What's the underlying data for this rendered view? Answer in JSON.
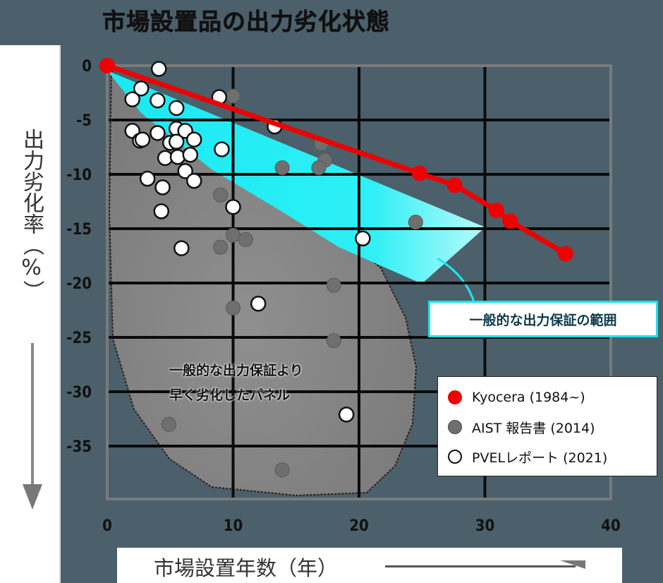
{
  "title": "市場設置品の出力劣化状態",
  "y_axis_label": "出力劣化率（%）",
  "x_axis_label": "市場設置年数（年）",
  "callout_label": "一般的な出力保証の範囲",
  "region_label_line1": "一般的な出力保証より",
  "region_label_line2": "早く劣化したパネル",
  "legend": [
    {
      "label": "Kyocera (1984~)",
      "color": "#ee0000",
      "style": "filled"
    },
    {
      "label": "AIST 報告書 (2014)",
      "color": "#6f6f6f",
      "style": "filled"
    },
    {
      "label": "PVELレポート (2021)",
      "color": "#ffffff",
      "style": "hollow"
    }
  ],
  "colors": {
    "background": "#4b606a",
    "kyocera": "#ee0000",
    "aist": "#6f6f6f",
    "pvel": "#ffffff",
    "warranty_band": "#19e8f2",
    "early_degradation_region": "#8a8a8a",
    "grid": "#0a0a0a",
    "frame": "#7a7a7a"
  },
  "chart_data": {
    "type": "scatter",
    "title": "市場設置品の出力劣化状態",
    "xlabel": "市場設置年数（年）",
    "ylabel": "出力劣化率（%）",
    "xlim": [
      0,
      40
    ],
    "ylim": [
      -40,
      0
    ],
    "x_ticks": [
      0,
      10,
      20,
      30,
      40
    ],
    "y_ticks": [
      0,
      -5,
      -10,
      -15,
      -20,
      -25,
      -30,
      -35
    ],
    "grid": true,
    "legend_position": "lower right",
    "series": [
      {
        "name": "Kyocera (1984~)",
        "kind": "line+marker",
        "points": [
          [
            0,
            0
          ],
          [
            24.8,
            -9.9
          ],
          [
            27.6,
            -11.0
          ],
          [
            30.9,
            -13.3
          ],
          [
            32.0,
            -14.3
          ],
          [
            36.4,
            -17.3
          ]
        ]
      },
      {
        "name": "AIST 報告書 (2014)",
        "kind": "marker",
        "points": [
          [
            10.0,
            -2.8
          ],
          [
            13.9,
            -9.4
          ],
          [
            17.0,
            -7.2
          ],
          [
            17.3,
            -8.7
          ],
          [
            16.8,
            -9.4
          ],
          [
            9.0,
            -11.9
          ],
          [
            10.0,
            -15.6
          ],
          [
            11.0,
            -16.0
          ],
          [
            9.0,
            -16.7
          ],
          [
            10.0,
            -22.3
          ],
          [
            18.0,
            -20.2
          ],
          [
            18.0,
            -25.3
          ],
          [
            4.9,
            -33.0
          ],
          [
            13.9,
            -37.2
          ],
          [
            24.5,
            -14.4
          ]
        ]
      },
      {
        "name": "PVELレポート (2021)",
        "kind": "marker",
        "points": [
          [
            4.1,
            -0.3
          ],
          [
            2.7,
            -2.1
          ],
          [
            2.0,
            -3.1
          ],
          [
            4.0,
            -3.2
          ],
          [
            5.5,
            -3.9
          ],
          [
            8.9,
            -2.9
          ],
          [
            13.3,
            -5.6
          ],
          [
            2.0,
            -6.0
          ],
          [
            4.0,
            -6.2
          ],
          [
            2.6,
            -6.9
          ],
          [
            2.8,
            -6.8
          ],
          [
            5.5,
            -5.8
          ],
          [
            6.2,
            -6.0
          ],
          [
            6.9,
            -6.8
          ],
          [
            5.0,
            -7.1
          ],
          [
            9.1,
            -7.7
          ],
          [
            5.5,
            -7.0
          ],
          [
            4.6,
            -8.5
          ],
          [
            5.6,
            -8.4
          ],
          [
            6.6,
            -8.2
          ],
          [
            6.2,
            -9.7
          ],
          [
            6.9,
            -10.6
          ],
          [
            3.2,
            -10.4
          ],
          [
            4.4,
            -11.2
          ],
          [
            4.3,
            -13.4
          ],
          [
            10.0,
            -13.0
          ],
          [
            5.9,
            -16.8
          ],
          [
            20.3,
            -15.9
          ],
          [
            12.0,
            -21.9
          ],
          [
            19.0,
            -32.1
          ]
        ]
      }
    ],
    "annotations": [
      {
        "text": "一般的な出力保証の範囲",
        "type": "band",
        "polygon": [
          [
            0,
            0
          ],
          [
            30,
            -15
          ],
          [
            25,
            -20
          ],
          [
            0,
            -2
          ]
        ]
      },
      {
        "text": "一般的な出力保証より早く劣化したパネル",
        "type": "region"
      }
    ]
  }
}
